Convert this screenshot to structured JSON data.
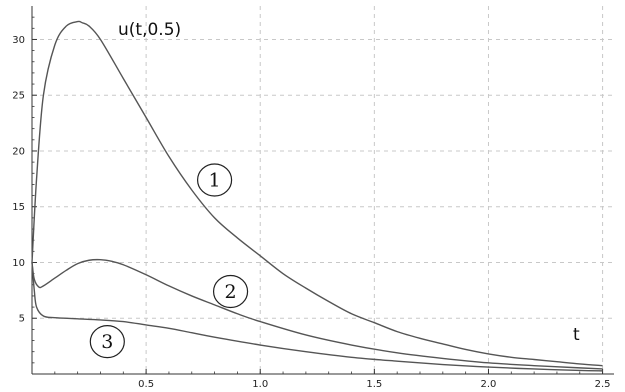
{
  "chart_data": {
    "type": "line",
    "title": "",
    "ylabel": "u(t,0.5)",
    "xlabel": "t",
    "xlim": [
      0,
      2.55
    ],
    "ylim": [
      0,
      33
    ],
    "grid": true,
    "grid_style": "dashed",
    "x_ticks": [
      0.5,
      1.0,
      1.5,
      2.0,
      2.5
    ],
    "x_tick_labels": [
      "0.5",
      "1.0",
      "1.5",
      "2.0",
      "2.5"
    ],
    "y_ticks": [
      5,
      10,
      15,
      20,
      25,
      30
    ],
    "y_tick_labels": [
      "5",
      "10",
      "15",
      "20",
      "25",
      "30"
    ],
    "curve_color": "#555555",
    "series": [
      {
        "label": "1",
        "label_at": [
          0.8,
          17.4
        ],
        "x": [
          0,
          0.02,
          0.05,
          0.1,
          0.15,
          0.2,
          0.22,
          0.25,
          0.3,
          0.4,
          0.5,
          0.6,
          0.7,
          0.8,
          0.9,
          1.0,
          1.1,
          1.2,
          1.3,
          1.4,
          1.5,
          1.6,
          1.7,
          1.8,
          1.9,
          2.0,
          2.1,
          2.2,
          2.3,
          2.4,
          2.5
        ],
        "y": [
          10.0,
          17.5,
          25.0,
          29.5,
          31.2,
          31.6,
          31.5,
          31.2,
          30.0,
          26.5,
          23.0,
          19.5,
          16.5,
          14.0,
          12.2,
          10.6,
          9.0,
          7.7,
          6.5,
          5.4,
          4.6,
          3.8,
          3.2,
          2.7,
          2.2,
          1.8,
          1.5,
          1.3,
          1.1,
          0.9,
          0.75
        ]
      },
      {
        "label": "2",
        "label_at": [
          0.87,
          7.4
        ],
        "x": [
          0,
          0.01,
          0.03,
          0.05,
          0.1,
          0.15,
          0.2,
          0.25,
          0.3,
          0.35,
          0.4,
          0.5,
          0.6,
          0.7,
          0.8,
          0.9,
          1.0,
          1.2,
          1.4,
          1.6,
          1.8,
          2.0,
          2.2,
          2.4,
          2.5
        ],
        "y": [
          10.0,
          8.5,
          7.8,
          7.9,
          8.6,
          9.3,
          9.9,
          10.2,
          10.25,
          10.1,
          9.8,
          8.9,
          7.9,
          7.0,
          6.2,
          5.4,
          4.7,
          3.5,
          2.6,
          1.9,
          1.4,
          1.0,
          0.75,
          0.55,
          0.45
        ]
      },
      {
        "label": "3",
        "label_at": [
          0.33,
          2.9
        ],
        "x": [
          0,
          0.01,
          0.02,
          0.05,
          0.1,
          0.2,
          0.3,
          0.4,
          0.5,
          0.6,
          0.7,
          0.8,
          1.0,
          1.2,
          1.4,
          1.6,
          1.8,
          2.0,
          2.2,
          2.4,
          2.5
        ],
        "y": [
          10.0,
          7.5,
          6.0,
          5.2,
          5.05,
          4.95,
          4.85,
          4.7,
          4.4,
          4.1,
          3.7,
          3.3,
          2.6,
          2.0,
          1.5,
          1.15,
          0.85,
          0.62,
          0.45,
          0.32,
          0.28
        ]
      }
    ]
  }
}
